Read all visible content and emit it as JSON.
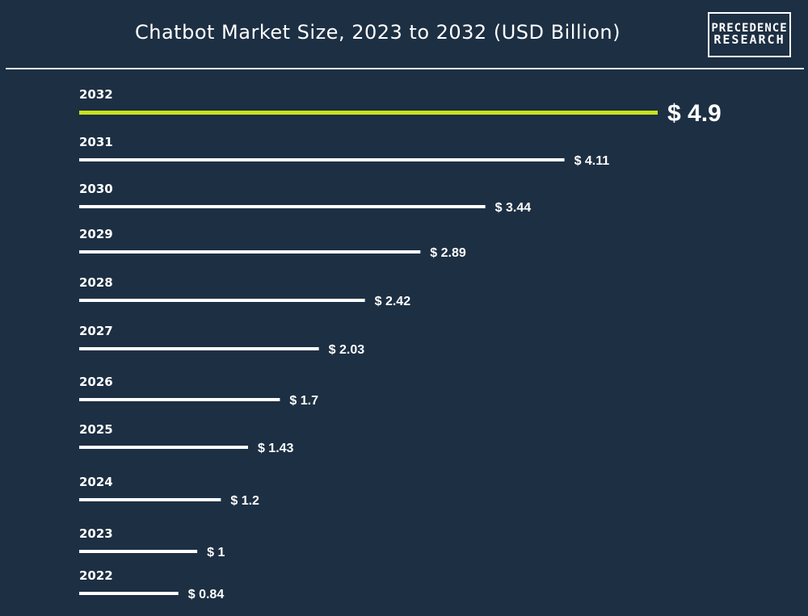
{
  "header": {
    "title": "Chatbot Market Size, 2023 to 2032 (USD Billion)",
    "logo_line1": "PRECEDENCE",
    "logo_line2": "RESEARCH"
  },
  "colors": {
    "background": "#1d2f43",
    "bar": "#ffffff",
    "highlight_bar": "#c8e21b",
    "text": "#ffffff"
  },
  "chart_data": {
    "type": "bar",
    "orientation": "horizontal",
    "title": "Chatbot Market Size, 2023 to 2032 (USD Billion)",
    "categories": [
      "2032",
      "2031",
      "2030",
      "2029",
      "2028",
      "2027",
      "2026",
      "2025",
      "2024",
      "2023",
      "2022"
    ],
    "values": [
      4.9,
      4.11,
      3.44,
      2.89,
      2.42,
      2.03,
      1.7,
      1.43,
      1.2,
      1,
      0.84
    ],
    "value_labels": [
      "$ 4.9",
      "$ 4.11",
      "$ 3.44",
      "$ 2.89",
      "$ 2.42",
      "$ 2.03",
      "$ 1.7",
      "$ 1.43",
      "$ 1.2",
      "$ 1",
      "$ 0.84"
    ],
    "highlight_category": "2032",
    "grid": false,
    "legend": "none"
  }
}
